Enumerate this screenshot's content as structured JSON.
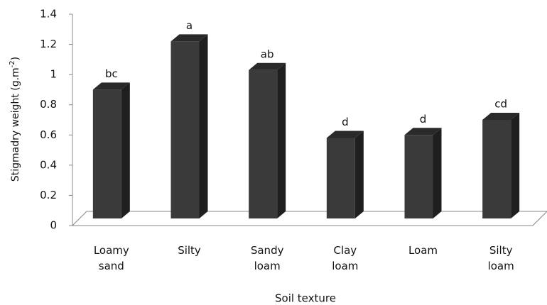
{
  "chart_data": {
    "type": "bar3d",
    "y_label": {
      "text": "Stigmadry weight (g.m",
      "sup": "-2",
      "end": ")"
    },
    "x_label": "Soil texture",
    "categories": [
      "Loamy sand",
      "Silty",
      "Sandy loam",
      "Clay loam",
      "Loam",
      "Silty loam"
    ],
    "values": [
      0.9,
      1.22,
      1.03,
      0.58,
      0.6,
      0.7
    ],
    "group_letters": [
      "bc",
      "a",
      "ab",
      "d",
      "d",
      "cd"
    ],
    "color": "#3a3a3a",
    "ylim": [
      0,
      1.4
    ],
    "yticks": [
      0,
      0.2,
      0.4,
      0.6,
      0.8,
      1,
      1.2,
      1.4
    ],
    "grid": false
  }
}
